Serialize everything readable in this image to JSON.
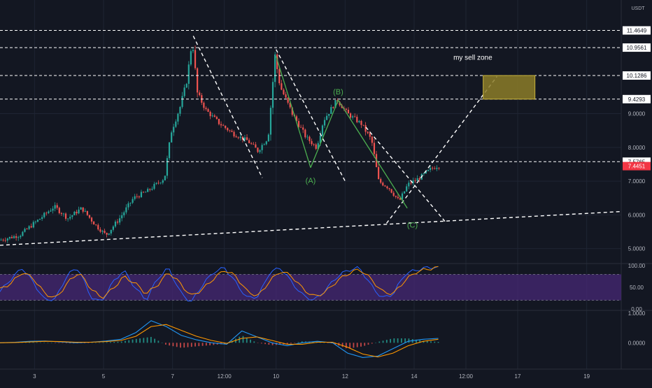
{
  "currency_label": "USDT",
  "colors": {
    "background": "#131722",
    "grid": "#1f2433",
    "up": "#26a69a",
    "down": "#ef5350",
    "dashed": "#ffffff",
    "wave": "#4caf50",
    "zone_fill": "#8c7d28",
    "zone_stroke": "#c9b43c",
    "last_price_bg": "#f23645",
    "stoch_band": "#4a2a7a",
    "stoch_k": "#2962ff",
    "stoch_d": "#ff9800",
    "macd_line": "#2196f3",
    "signal_line": "#ff9800"
  },
  "annotations": {
    "sell_zone": "my sell zone",
    "wave_a": "(A)",
    "wave_b": "(B)",
    "wave_c": "(C)"
  },
  "chart_data": [
    {
      "type": "candlestick",
      "panel": "price",
      "title": "",
      "ylim": [
        4.6,
        12.2
      ],
      "price_ticks": [
        "5.0000",
        "6.0000",
        "7.0000",
        "8.0000",
        "9.0000"
      ],
      "price_tick_values": [
        5,
        6,
        7,
        8,
        9
      ],
      "level_lines": [
        {
          "value": 11.4649,
          "label": "11.4649"
        },
        {
          "value": 10.9561,
          "label": "10.9561"
        },
        {
          "value": 10.1286,
          "label": "10.1286"
        },
        {
          "value": 9.4293,
          "label": "9.4293"
        },
        {
          "value": 7.5765,
          "label": "7.5765"
        }
      ],
      "last_price": {
        "value": 7.4451,
        "label": "7.4451"
      },
      "x_ticks": [
        "3",
        "5",
        "7",
        "12:00",
        "10",
        "12",
        "14",
        "12:00",
        "17",
        "19"
      ],
      "x_tick_days": [
        3,
        5,
        7,
        8.5,
        10,
        12,
        14,
        15.5,
        17,
        19
      ],
      "x_range_days": [
        2.0,
        20.0
      ],
      "price_path": [
        [
          2.0,
          5.25
        ],
        [
          2.6,
          5.4
        ],
        [
          3.2,
          5.9
        ],
        [
          3.6,
          6.25
        ],
        [
          4.0,
          5.9
        ],
        [
          4.4,
          6.2
        ],
        [
          4.8,
          5.7
        ],
        [
          5.1,
          5.4
        ],
        [
          5.5,
          5.9
        ],
        [
          5.9,
          6.5
        ],
        [
          6.3,
          6.7
        ],
        [
          6.8,
          7.1
        ],
        [
          7.0,
          8.5
        ],
        [
          7.25,
          9.2
        ],
        [
          7.45,
          10.0
        ],
        [
          7.6,
          11.2
        ],
        [
          7.75,
          9.6
        ],
        [
          8.0,
          9.1
        ],
        [
          8.4,
          8.7
        ],
        [
          8.8,
          8.4
        ],
        [
          9.2,
          8.2
        ],
        [
          9.5,
          7.9
        ],
        [
          9.8,
          8.3
        ],
        [
          10.0,
          10.7
        ],
        [
          10.15,
          9.8
        ],
        [
          10.5,
          9.0
        ],
        [
          10.9,
          8.3
        ],
        [
          11.2,
          8.0
        ],
        [
          11.4,
          8.8
        ],
        [
          11.8,
          9.4
        ],
        [
          12.1,
          9.0
        ],
        [
          12.5,
          8.7
        ],
        [
          12.8,
          8.2
        ],
        [
          13.0,
          7.0
        ],
        [
          13.3,
          6.8
        ],
        [
          13.6,
          6.4
        ],
        [
          13.85,
          6.9
        ],
        [
          14.2,
          7.1
        ],
        [
          14.5,
          7.35
        ],
        [
          14.7,
          7.45
        ]
      ],
      "waves": [
        {
          "label": "(A)",
          "points": [
            [
              10.0,
              10.7
            ],
            [
              11.0,
              7.4
            ]
          ]
        },
        {
          "label": "(B)",
          "points": [
            [
              11.0,
              7.4
            ],
            [
              11.8,
              9.4
            ]
          ]
        },
        {
          "label": "(C)",
          "points": [
            [
              11.8,
              9.4
            ],
            [
              13.8,
              6.2
            ]
          ]
        }
      ],
      "channels": [
        {
          "from": [
            7.6,
            11.3
          ],
          "to": [
            9.6,
            7.1
          ]
        },
        {
          "from": [
            10.0,
            10.9
          ],
          "to": [
            12.0,
            7.0
          ]
        },
        {
          "from": [
            12.6,
            8.6
          ],
          "to": [
            14.9,
            5.8
          ]
        },
        {
          "from": [
            13.2,
            5.75
          ],
          "to": [
            16.4,
            10.1
          ]
        },
        {
          "from": [
            2.0,
            5.1
          ],
          "to": [
            20.0,
            6.1
          ]
        }
      ],
      "sell_zone": {
        "x_from_day": 16.0,
        "x_to_day": 17.5,
        "low": 9.4293,
        "high": 10.1286
      }
    },
    {
      "type": "line",
      "panel": "stochastic_rsi",
      "ylim": [
        0,
        100
      ],
      "y_ticks": [
        "100.00",
        "50.00",
        "0.00"
      ],
      "y_tick_values": [
        100,
        50,
        0
      ],
      "band": [
        20,
        80
      ],
      "series": [
        {
          "values": [
            40,
            70,
            95,
            60,
            20,
            25,
            80,
            95,
            30,
            15,
            60,
            90,
            50,
            20,
            70,
            95,
            40,
            15,
            55,
            85,
            95,
            60,
            25,
            30,
            85,
            95,
            60,
            30,
            20,
            45,
            75,
            90,
            95,
            55,
            25,
            35,
            80,
            90,
            95,
            98
          ]
        },
        {
          "values": [
            45,
            60,
            85,
            70,
            35,
            25,
            60,
            85,
            50,
            25,
            45,
            75,
            60,
            35,
            55,
            85,
            60,
            30,
            45,
            70,
            90,
            75,
            40,
            30,
            65,
            88,
            75,
            45,
            28,
            40,
            65,
            82,
            92,
            70,
            40,
            35,
            65,
            85,
            92,
            96
          ]
        }
      ]
    },
    {
      "type": "macd",
      "panel": "macd",
      "ylim": [
        -0.75,
        1.05
      ],
      "y_ticks": [
        "1.0000",
        "0.0000"
      ],
      "y_tick_values": [
        1,
        0
      ],
      "series": [
        {
          "values": [
            0.0,
            0.02,
            0.05,
            0.06,
            0.03,
            0.0,
            0.02,
            0.06,
            0.12,
            0.35,
            0.75,
            0.55,
            0.25,
            0.1,
            0.0,
            -0.05,
            0.4,
            0.2,
            0.0,
            -0.1,
            0.0,
            0.05,
            0.0,
            -0.35,
            -0.5,
            -0.45,
            -0.2,
            0.05,
            0.12,
            0.15
          ]
        },
        {
          "values": [
            0.0,
            0.01,
            0.03,
            0.05,
            0.04,
            0.02,
            0.02,
            0.04,
            0.08,
            0.22,
            0.55,
            0.62,
            0.42,
            0.22,
            0.08,
            -0.02,
            0.15,
            0.2,
            0.08,
            -0.05,
            -0.05,
            0.02,
            0.02,
            -0.15,
            -0.38,
            -0.48,
            -0.35,
            -0.1,
            0.05,
            0.12
          ]
        }
      ],
      "histogram": [
        0.0,
        0.01,
        0.02,
        0.01,
        -0.01,
        -0.02,
        0.0,
        0.02,
        0.04,
        0.13,
        0.2,
        -0.07,
        -0.17,
        -0.12,
        -0.08,
        -0.03,
        0.25,
        0.0,
        -0.08,
        -0.05,
        0.05,
        0.03,
        -0.02,
        -0.2,
        -0.12,
        0.03,
        0.15,
        0.15,
        0.07,
        0.03
      ]
    }
  ]
}
